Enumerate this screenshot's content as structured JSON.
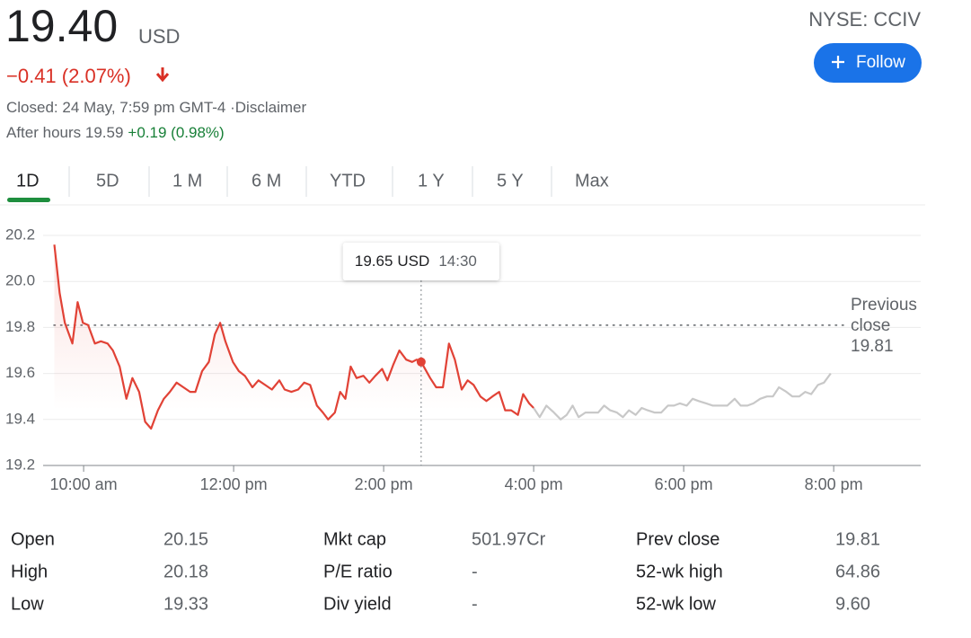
{
  "header": {
    "price": "19.40",
    "currency": "USD",
    "change": "−0.41 (2.07%)",
    "closed": "Closed: 24 May, 7:59 pm GMT-4 ·",
    "disclaimer": "Disclaimer",
    "after_hours": "After hours 19.59",
    "after_hours_change": "+0.19 (0.98%)",
    "ticker": "NYSE: CCIV",
    "follow": "Follow"
  },
  "tabs": [
    "1D",
    "5D",
    "1 M",
    "6 M",
    "YTD",
    "1 Y",
    "5 Y",
    "Max"
  ],
  "chart_data": {
    "type": "line",
    "xlim": [
      9.46,
      21.16
    ],
    "ylim": [
      19.2,
      20.2
    ],
    "xticks": [
      {
        "value": 10,
        "label": "10:00 am"
      },
      {
        "value": 12,
        "label": "12:00 pm"
      },
      {
        "value": 14,
        "label": "2:00 pm"
      },
      {
        "value": 16,
        "label": "4:00 pm"
      },
      {
        "value": 18,
        "label": "6:00 pm"
      },
      {
        "value": 20,
        "label": "8:00 pm"
      }
    ],
    "yticks": [
      19.2,
      19.4,
      19.6,
      19.8,
      {
        "value": 20,
        "label": "20.0"
      },
      20.2
    ],
    "grid": true,
    "series": [
      {
        "color": "#e14236",
        "area": true,
        "x": [
          9.61,
          9.68,
          9.75,
          9.85,
          9.92,
          9.99,
          10.06,
          10.15,
          10.23,
          10.32,
          10.39,
          10.48,
          10.57,
          10.65,
          10.74,
          10.82,
          10.9,
          10.99,
          11.07,
          11.15,
          11.24,
          11.33,
          11.42,
          11.49,
          11.58,
          11.67,
          11.75,
          11.82,
          11.89,
          11.99,
          12.07,
          12.15,
          12.25,
          12.33,
          12.42,
          12.51,
          12.61,
          12.68,
          12.77,
          12.86,
          12.94,
          13.02,
          13.11,
          13.19,
          13.26,
          13.35,
          13.42,
          13.49,
          13.56,
          13.64,
          13.73,
          13.81,
          13.89,
          13.98,
          14.05,
          14.13,
          14.21,
          14.3,
          14.38,
          14.44,
          14.5,
          14.62,
          14.7,
          14.79,
          14.87,
          14.95,
          15.04,
          15.12,
          15.2,
          15.29,
          15.37,
          15.45,
          15.54,
          15.62,
          15.7,
          15.79,
          15.86,
          15.94,
          16.0
        ],
        "values": [
          20.16,
          19.95,
          19.82,
          19.73,
          19.91,
          19.82,
          19.81,
          19.73,
          19.74,
          19.73,
          19.7,
          19.63,
          19.49,
          19.58,
          19.52,
          19.39,
          19.36,
          19.44,
          19.49,
          19.52,
          19.56,
          19.54,
          19.52,
          19.52,
          19.61,
          19.65,
          19.77,
          19.82,
          19.74,
          19.65,
          19.61,
          19.59,
          19.54,
          19.57,
          19.55,
          19.53,
          19.57,
          19.53,
          19.52,
          19.53,
          19.56,
          19.55,
          19.46,
          19.43,
          19.4,
          19.43,
          19.52,
          19.49,
          19.63,
          19.58,
          19.59,
          19.56,
          19.59,
          19.62,
          19.57,
          19.64,
          19.7,
          19.66,
          19.65,
          19.66,
          19.65,
          19.58,
          19.54,
          19.54,
          19.73,
          19.66,
          19.53,
          19.57,
          19.55,
          19.5,
          19.48,
          19.5,
          19.52,
          19.44,
          19.44,
          19.42,
          19.51,
          19.47,
          19.45
        ]
      },
      {
        "color": "#c8c8c8",
        "x": [
          16.0,
          16.08,
          16.17,
          16.27,
          16.36,
          16.44,
          16.52,
          16.6,
          16.69,
          16.77,
          16.86,
          16.94,
          17.02,
          17.11,
          17.19,
          17.27,
          17.36,
          17.44,
          17.52,
          17.61,
          17.7,
          17.79,
          17.87,
          17.95,
          18.04,
          18.12,
          18.2,
          18.3,
          18.39,
          18.49,
          18.58,
          18.68,
          18.76,
          18.85,
          18.93,
          19.02,
          19.11,
          19.19,
          19.27,
          19.37,
          19.45,
          19.54,
          19.62,
          19.7,
          19.79,
          19.87,
          19.96
        ],
        "values": [
          19.45,
          19.41,
          19.46,
          19.43,
          19.4,
          19.42,
          19.46,
          19.41,
          19.43,
          19.43,
          19.43,
          19.46,
          19.44,
          19.43,
          19.41,
          19.44,
          19.42,
          19.45,
          19.44,
          19.43,
          19.43,
          19.46,
          19.46,
          19.47,
          19.46,
          19.49,
          19.48,
          19.47,
          19.46,
          19.46,
          19.46,
          19.49,
          19.46,
          19.46,
          19.47,
          19.49,
          19.5,
          19.5,
          19.54,
          19.52,
          19.5,
          19.5,
          19.52,
          19.51,
          19.55,
          19.56,
          19.6
        ]
      }
    ],
    "previous_close": {
      "label": "Previous close",
      "value": 19.81
    },
    "tooltip": {
      "value": 19.65,
      "currency": "USD",
      "time": "14:30",
      "x": 14.5
    }
  },
  "stats": {
    "rows": [
      [
        {
          "label": "Open",
          "value": "20.15"
        },
        {
          "label": "Mkt cap",
          "value": "501.97Cr"
        },
        {
          "label": "Prev close",
          "value": "19.81"
        }
      ],
      [
        {
          "label": "High",
          "value": "20.18"
        },
        {
          "label": "P/E ratio",
          "value": "-"
        },
        {
          "label": "52-wk high",
          "value": "64.86"
        }
      ],
      [
        {
          "label": "Low",
          "value": "19.33"
        },
        {
          "label": "Div yield",
          "value": "-"
        },
        {
          "label": "52-wk low",
          "value": "9.60"
        }
      ]
    ]
  }
}
